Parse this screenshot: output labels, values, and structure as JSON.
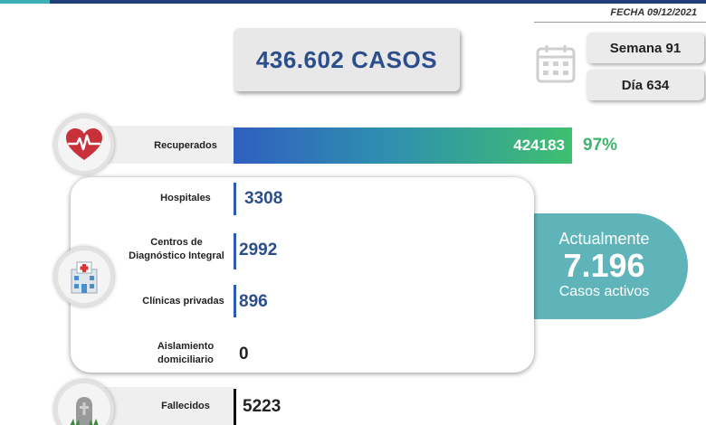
{
  "header": {
    "fecha": "FECHA 09/12/2021"
  },
  "summary": {
    "casos": "436.602 CASOS",
    "semana": "Semana 91",
    "dia": "Día 634"
  },
  "recuperados": {
    "label": "Recuperados",
    "value": "424183",
    "percent": "97%",
    "fill_fraction": 0.97
  },
  "activos": {
    "title": "Actualmente",
    "value": "7.196",
    "subtitle": "Casos activos",
    "rows": [
      {
        "label_lines": [
          "Hospitales"
        ],
        "value": "3308"
      },
      {
        "label_lines": [
          "Centros de",
          "Diagnóstico Integral"
        ],
        "value": "2992"
      },
      {
        "label_lines": [
          "Clínicas privadas"
        ],
        "value": "896"
      },
      {
        "label_lines": [
          "Aislamiento",
          "domiciliario"
        ],
        "value": "0"
      }
    ]
  },
  "fallecidos": {
    "label": "Fallecidos",
    "value": "5223"
  },
  "icons": [
    "heart-pulse-icon",
    "hospital-icon",
    "tombstone-icon",
    "calendar-icon"
  ],
  "colors": {
    "brand_blue": "#2c4f8c",
    "green": "#3db56b",
    "teal": "#5fb4b9",
    "bar_blue": "#2c5bb5"
  }
}
